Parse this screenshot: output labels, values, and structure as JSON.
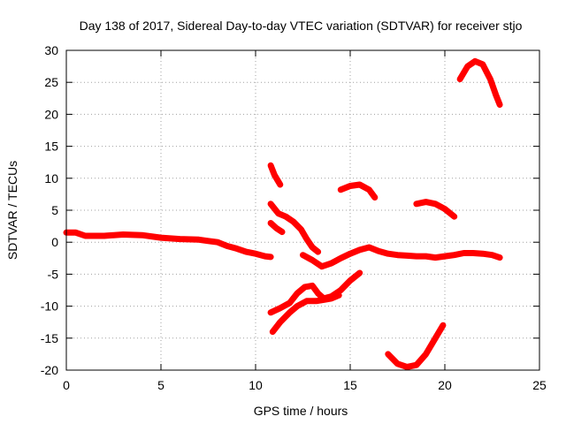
{
  "chart_data": {
    "type": "scatter",
    "title": "Day 138 of 2017, Sidereal Day-to-day VTEC variation (SDTVAR) for receiver stjo",
    "xlabel": "GPS time / hours",
    "ylabel": "SDTVAR / TECUs",
    "xlim": [
      0,
      25
    ],
    "ylim": [
      -20,
      30
    ],
    "xticks": [
      0,
      5,
      10,
      15,
      20,
      25
    ],
    "yticks": [
      -20,
      -15,
      -10,
      -5,
      0,
      5,
      10,
      15,
      20,
      25,
      30
    ],
    "grid": true,
    "series_color": "#ff0000",
    "series": [
      {
        "name": "main-trace",
        "points": [
          [
            0,
            1.5
          ],
          [
            0.5,
            1.5
          ],
          [
            1,
            1
          ],
          [
            2,
            1
          ],
          [
            3,
            1.2
          ],
          [
            4,
            1.1
          ],
          [
            5,
            0.7
          ],
          [
            6,
            0.5
          ],
          [
            7,
            0.4
          ],
          [
            7.5,
            0.2
          ],
          [
            8,
            0
          ],
          [
            8.5,
            -0.6
          ],
          [
            9,
            -1
          ],
          [
            9.5,
            -1.5
          ],
          [
            10,
            -1.8
          ],
          [
            10.5,
            -2.2
          ],
          [
            10.8,
            -2.3
          ]
        ]
      },
      {
        "name": "arc-11-steep",
        "points": [
          [
            10.8,
            12
          ],
          [
            11,
            10.5
          ],
          [
            11.2,
            9.5
          ],
          [
            11.3,
            9
          ]
        ]
      },
      {
        "name": "arc-11-upper",
        "points": [
          [
            10.8,
            6
          ],
          [
            11.2,
            4.5
          ],
          [
            11.6,
            4
          ],
          [
            12,
            3.2
          ],
          [
            12.4,
            2
          ],
          [
            12.7,
            0.5
          ],
          [
            13,
            -0.8
          ],
          [
            13.3,
            -1.5
          ]
        ]
      },
      {
        "name": "arc-11-short",
        "points": [
          [
            10.8,
            3
          ],
          [
            11.1,
            2.2
          ],
          [
            11.4,
            1.6
          ]
        ]
      },
      {
        "name": "arc-mid-low",
        "points": [
          [
            12.5,
            -2
          ],
          [
            13,
            -2.8
          ],
          [
            13.5,
            -3.8
          ],
          [
            14,
            -3.3
          ],
          [
            14.5,
            -2.5
          ],
          [
            15,
            -1.8
          ],
          [
            15.5,
            -1.2
          ],
          [
            16,
            -0.8
          ],
          [
            16.5,
            -1.4
          ],
          [
            17,
            -1.8
          ],
          [
            17.5,
            -2
          ],
          [
            18,
            -2.1
          ],
          [
            18.5,
            -2.2
          ],
          [
            19,
            -2.2
          ],
          [
            19.5,
            -2.4
          ],
          [
            20,
            -2.2
          ],
          [
            20.5,
            -2
          ],
          [
            21,
            -1.7
          ],
          [
            21.5,
            -1.7
          ],
          [
            22,
            -1.8
          ],
          [
            22.5,
            -2
          ],
          [
            22.9,
            -2.4
          ]
        ]
      },
      {
        "name": "arc-14-16",
        "points": [
          [
            14.5,
            8.2
          ],
          [
            15,
            8.8
          ],
          [
            15.5,
            9
          ],
          [
            16,
            8.2
          ],
          [
            16.3,
            7
          ]
        ]
      },
      {
        "name": "arc-18-20",
        "points": [
          [
            18.5,
            6
          ],
          [
            19,
            6.3
          ],
          [
            19.5,
            6
          ],
          [
            20,
            5.2
          ],
          [
            20.5,
            4
          ]
        ]
      },
      {
        "name": "arc-21-23",
        "points": [
          [
            20.8,
            25.5
          ],
          [
            21.2,
            27.5
          ],
          [
            21.6,
            28.3
          ],
          [
            22,
            27.8
          ],
          [
            22.4,
            25.5
          ],
          [
            22.7,
            23
          ],
          [
            22.9,
            21.5
          ]
        ]
      },
      {
        "name": "arc-11-14-top",
        "points": [
          [
            10.8,
            -11
          ],
          [
            11.3,
            -10.3
          ],
          [
            11.8,
            -9.5
          ],
          [
            12.2,
            -8
          ],
          [
            12.6,
            -7
          ],
          [
            13,
            -6.8
          ],
          [
            13.3,
            -8
          ],
          [
            13.6,
            -8.8
          ],
          [
            14,
            -8.5
          ],
          [
            14.5,
            -7.5
          ],
          [
            15,
            -6
          ],
          [
            15.5,
            -4.8
          ]
        ]
      },
      {
        "name": "arc-11-14-bottom",
        "points": [
          [
            10.9,
            -14
          ],
          [
            11.3,
            -12.5
          ],
          [
            11.8,
            -11
          ],
          [
            12.2,
            -10
          ],
          [
            12.7,
            -9.2
          ],
          [
            13.2,
            -9.2
          ],
          [
            13.6,
            -9
          ],
          [
            14,
            -8.8
          ],
          [
            14.4,
            -8.3
          ]
        ]
      },
      {
        "name": "arc-17-20",
        "points": [
          [
            17,
            -17.5
          ],
          [
            17.5,
            -19
          ],
          [
            18,
            -19.5
          ],
          [
            18.5,
            -19.2
          ],
          [
            19,
            -17.5
          ],
          [
            19.5,
            -15
          ],
          [
            19.9,
            -13
          ]
        ]
      }
    ]
  }
}
